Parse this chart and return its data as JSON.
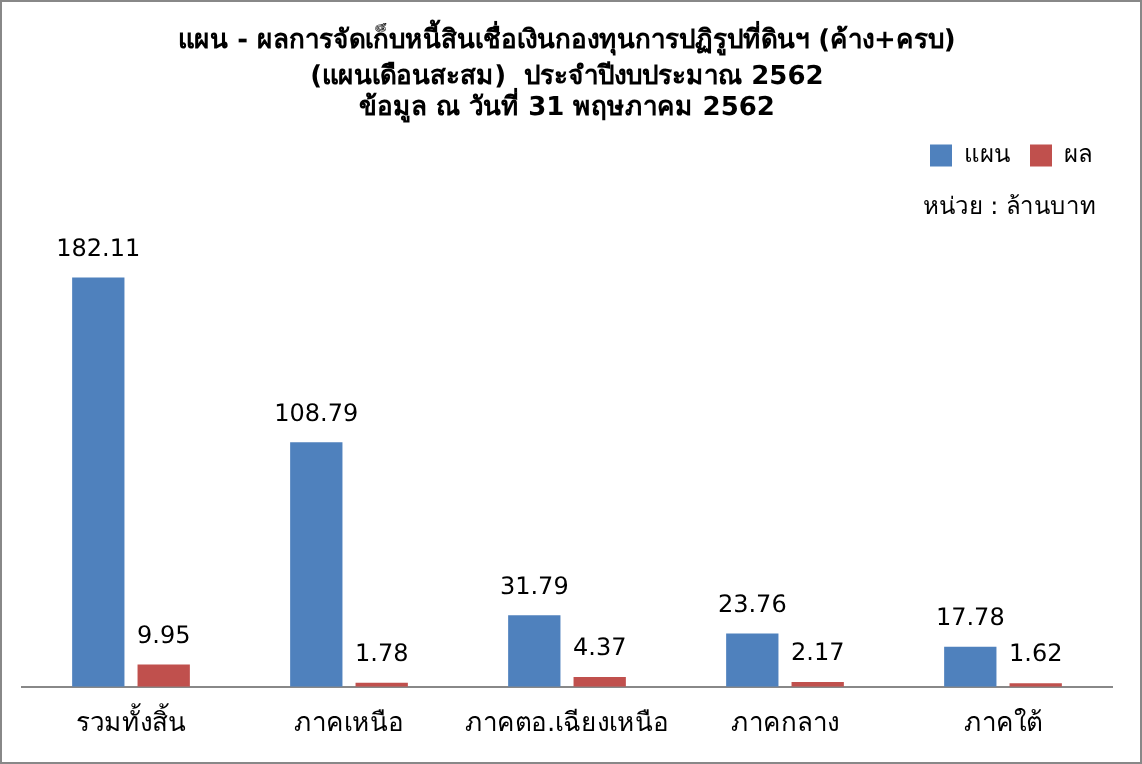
{
  "chart_data": {
    "type": "bar",
    "title": "แผน - ผลการจัดเก็บหนี้สินเชื่อเงินกองทุนการปฏิรูปที่ดินฯ (ค้าง+ครบ)",
    "subtitle": "(แผนเดือนสะสม)  ประจำปีงบประมาณ 2562\nข้อมูล ณ วันที่ 31 พฤษภาคม 2562",
    "annotations": [
      "หน่วย : ล้านบาท"
    ],
    "categories": [
      "รวมทั้งสิ้น",
      "ภาคเหนือ",
      "ภาคตอ.เฉียงเหนือ",
      "ภาคกลาง",
      "ภาคใต้"
    ],
    "series": [
      {
        "name": "แผน",
        "color": "#4f81bd",
        "values": [
          182.11,
          108.79,
          31.79,
          23.76,
          17.78
        ]
      },
      {
        "name": "ผล",
        "color": "#c0504d",
        "values": [
          9.95,
          1.78,
          4.37,
          2.17,
          1.62
        ]
      }
    ],
    "data_labels": true,
    "legend": "top right",
    "grid": false
  }
}
